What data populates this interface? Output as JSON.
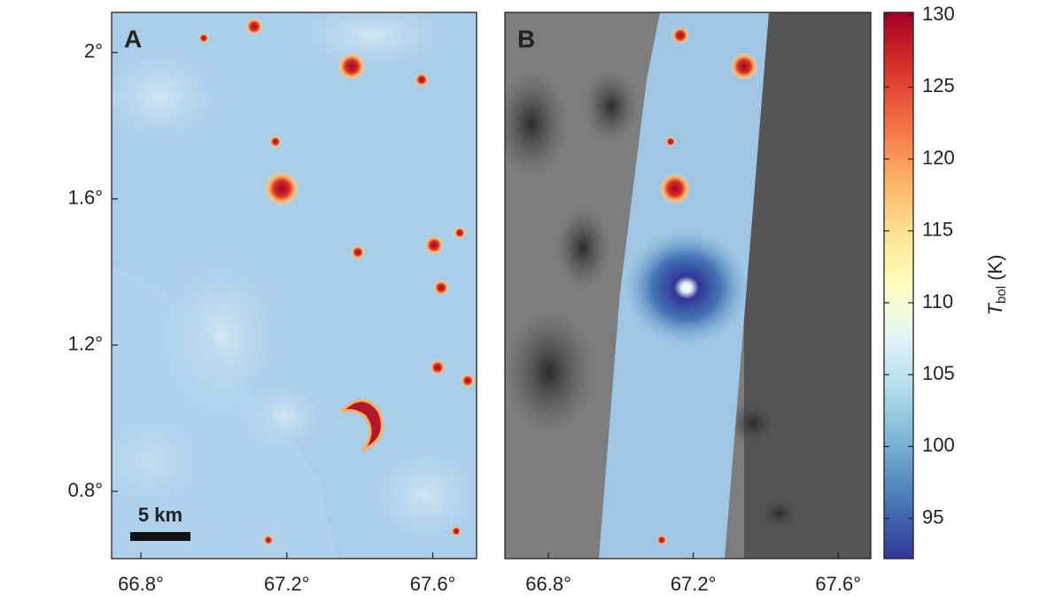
{
  "chart_data": [
    {
      "type": "map",
      "panel_label": "A",
      "scale_bar": "5 km",
      "xlim": [
        66.72,
        67.72
      ],
      "ylim": [
        0.616,
        2.11
      ],
      "xticks": [
        {
          "value": 66.8,
          "label": "66.8°"
        },
        {
          "value": 67.2,
          "label": "67.2°"
        },
        {
          "value": 67.6,
          "label": "67.6°"
        }
      ],
      "yticks": [
        {
          "value": 0.8,
          "label": "0.8°"
        },
        {
          "value": 1.2,
          "label": "1.2°"
        },
        {
          "value": 1.6,
          "label": "1.6°"
        },
        {
          "value": 2.0,
          "label": "2°"
        }
      ]
    },
    {
      "type": "map",
      "panel_label": "B",
      "xlim": [
        66.68,
        67.69
      ],
      "ylim": [
        0.616,
        2.11
      ],
      "xticks": [
        {
          "value": 66.8,
          "label": "66.8°"
        },
        {
          "value": 67.2,
          "label": "67.2°"
        },
        {
          "value": 67.6,
          "label": "67.6°"
        }
      ]
    },
    {
      "type": "colorbar",
      "label": {
        "symbol": "T",
        "subscript": "bol",
        "unit": "(K)"
      },
      "clim": [
        92.2,
        130.2
      ],
      "yticks": [
        95,
        100,
        105,
        110,
        115,
        120,
        125,
        130
      ]
    }
  ]
}
